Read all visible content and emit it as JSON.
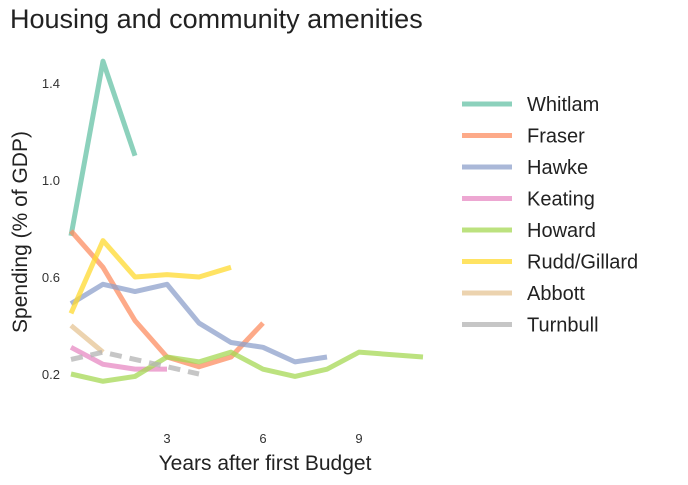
{
  "chart_data": {
    "type": "line",
    "title": "Housing and community amenities",
    "xlabel": "Years after first Budget",
    "ylabel": "Spending (% of GDP)",
    "xlim": [
      0,
      12
    ],
    "ylim": [
      0,
      1.55
    ],
    "xticks": [
      3,
      6,
      9
    ],
    "yticks": [
      0.2,
      0.6,
      1.0,
      1.4
    ],
    "grid": false,
    "legend": "right",
    "series": [
      {
        "name": "Whitlam",
        "color": "#66c2a5",
        "x": [
          0,
          1,
          2
        ],
        "values": [
          0.77,
          1.49,
          1.1
        ]
      },
      {
        "name": "Fraser",
        "color": "#fc8d62",
        "x": [
          0,
          1,
          2,
          3,
          4,
          5,
          6
        ],
        "values": [
          0.79,
          0.64,
          0.42,
          0.27,
          0.23,
          0.27,
          0.41
        ]
      },
      {
        "name": "Hawke",
        "color": "#8da0cb",
        "x": [
          0,
          1,
          2,
          3,
          4,
          5,
          6,
          7,
          8
        ],
        "values": [
          0.49,
          0.57,
          0.54,
          0.57,
          0.41,
          0.33,
          0.31,
          0.25,
          0.27
        ]
      },
      {
        "name": "Keating",
        "color": "#e78ac3",
        "x": [
          0,
          1,
          2,
          3
        ],
        "values": [
          0.31,
          0.24,
          0.22,
          0.22
        ]
      },
      {
        "name": "Howard",
        "color": "#a6d854",
        "x": [
          0,
          1,
          2,
          3,
          4,
          5,
          6,
          7,
          8,
          9,
          10,
          11
        ],
        "values": [
          0.2,
          0.17,
          0.19,
          0.27,
          0.25,
          0.29,
          0.22,
          0.19,
          0.22,
          0.29,
          0.28,
          0.27
        ]
      },
      {
        "name": "Rudd/Gillard",
        "color": "#ffd92f",
        "x": [
          0,
          1,
          2,
          3,
          4,
          5
        ],
        "values": [
          0.45,
          0.75,
          0.6,
          0.61,
          0.6,
          0.64
        ]
      },
      {
        "name": "Abbott",
        "color": "#e5c494",
        "x": [
          0,
          1
        ],
        "values": [
          0.4,
          0.29
        ]
      },
      {
        "name": "Turnbull",
        "color": "#b3b3b3",
        "dashed": true,
        "x": [
          0,
          1,
          2,
          3,
          4
        ],
        "values": [
          0.26,
          0.29,
          0.26,
          0.23,
          0.2
        ]
      }
    ]
  }
}
